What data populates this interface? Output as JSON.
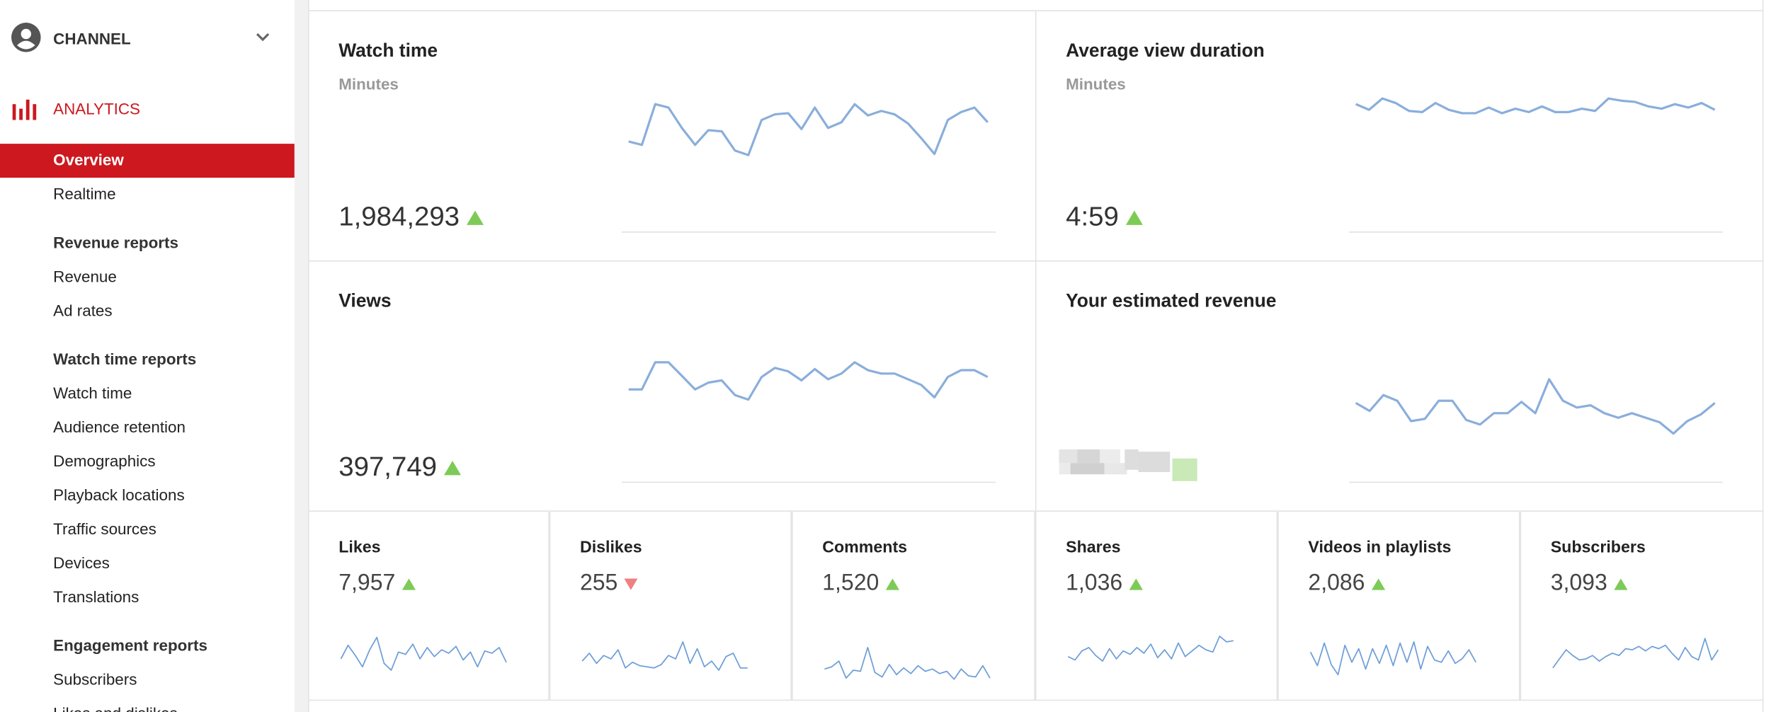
{
  "sidebar": {
    "channel": "CHANNEL",
    "analytics": "ANALYTICS",
    "nav": [
      {
        "label": "Overview",
        "active": true
      },
      {
        "label": "Realtime"
      },
      {
        "label": "Revenue reports",
        "heading": true
      },
      {
        "label": "Revenue"
      },
      {
        "label": "Ad rates"
      },
      {
        "label": "Watch time reports",
        "heading": true
      },
      {
        "label": "Watch time"
      },
      {
        "label": "Audience retention"
      },
      {
        "label": "Demographics"
      },
      {
        "label": "Playback locations"
      },
      {
        "label": "Traffic sources"
      },
      {
        "label": "Devices"
      },
      {
        "label": "Translations"
      },
      {
        "label": "Engagement reports",
        "heading": true
      },
      {
        "label": "Subscribers"
      },
      {
        "label": "Likes and dislikes"
      }
    ]
  },
  "cards": [
    {
      "title": "Watch time",
      "subtitle": "Minutes",
      "value": "1,984,293",
      "trend": "up",
      "series": [
        80,
        77,
        113,
        110,
        92,
        77,
        90,
        89,
        72,
        68,
        99,
        104,
        105,
        91,
        110,
        92,
        97,
        113,
        103,
        107,
        104,
        96,
        83,
        69,
        99,
        106,
        110,
        97
      ]
    },
    {
      "title": "Average view duration",
      "subtitle": "Minutes",
      "value": "4:59",
      "trend": "up",
      "series": [
        113,
        108,
        118,
        114,
        107,
        106,
        114,
        108,
        105,
        105,
        110,
        105,
        109,
        106,
        111,
        106,
        106,
        109,
        107,
        118,
        116,
        115,
        111,
        109,
        113,
        110,
        114,
        108
      ]
    },
    {
      "title": "Views",
      "value": "397,749",
      "trend": "up",
      "series": [
        82,
        82,
        106,
        106,
        94,
        82,
        88,
        90,
        77,
        73,
        93,
        101,
        98,
        90,
        100,
        91,
        96,
        106,
        99,
        96,
        96,
        91,
        86,
        75,
        93,
        99,
        99,
        93
      ]
    },
    {
      "title": "Your estimated revenue",
      "series": [
        70,
        63,
        77,
        72,
        54,
        56,
        72,
        72,
        55,
        51,
        61,
        61,
        71,
        61,
        91,
        72,
        66,
        68,
        61,
        57,
        61,
        57,
        53,
        43,
        54,
        60,
        70
      ]
    }
  ],
  "metrics": [
    {
      "title": "Likes",
      "value": "7,957",
      "trend": "up",
      "series": [
        22,
        34,
        25,
        15,
        30,
        41,
        18,
        12,
        28,
        26,
        35,
        22,
        32,
        24,
        30,
        27,
        33,
        21,
        28,
        15,
        29,
        27,
        32,
        19
      ]
    },
    {
      "title": "Dislikes",
      "value": "255",
      "trend": "down",
      "series": [
        20,
        27,
        18,
        25,
        22,
        30,
        14,
        19,
        16,
        15,
        14,
        17,
        25,
        22,
        37,
        18,
        31,
        15,
        20,
        12,
        24,
        27,
        14,
        14
      ]
    },
    {
      "title": "Comments",
      "value": "1,520",
      "trend": "up",
      "series": [
        13,
        15,
        20,
        5,
        12,
        11,
        32,
        10,
        6,
        17,
        8,
        14,
        9,
        16,
        11,
        13,
        9,
        11,
        4,
        13,
        7,
        6,
        16,
        5
      ]
    },
    {
      "title": "Shares",
      "value": "1,036",
      "trend": "up",
      "series": [
        24,
        21,
        29,
        32,
        25,
        20,
        31,
        22,
        29,
        26,
        32,
        27,
        35,
        23,
        30,
        22,
        36,
        24,
        29,
        34,
        30,
        28,
        42,
        37,
        38
      ]
    },
    {
      "title": "Videos in playlists",
      "value": "2,086",
      "trend": "up",
      "series": [
        28,
        16,
        36,
        17,
        8,
        34,
        19,
        31,
        13,
        31,
        18,
        34,
        16,
        36,
        19,
        37,
        13,
        33,
        21,
        19,
        29,
        18,
        22,
        30,
        19
      ]
    },
    {
      "title": "Subscribers",
      "value": "3,093",
      "trend": "up",
      "series": [
        14,
        22,
        30,
        25,
        21,
        22,
        25,
        20,
        24,
        27,
        25,
        31,
        30,
        33,
        29,
        33,
        31,
        34,
        27,
        21,
        32,
        24,
        21,
        40,
        21,
        30
      ]
    }
  ]
}
